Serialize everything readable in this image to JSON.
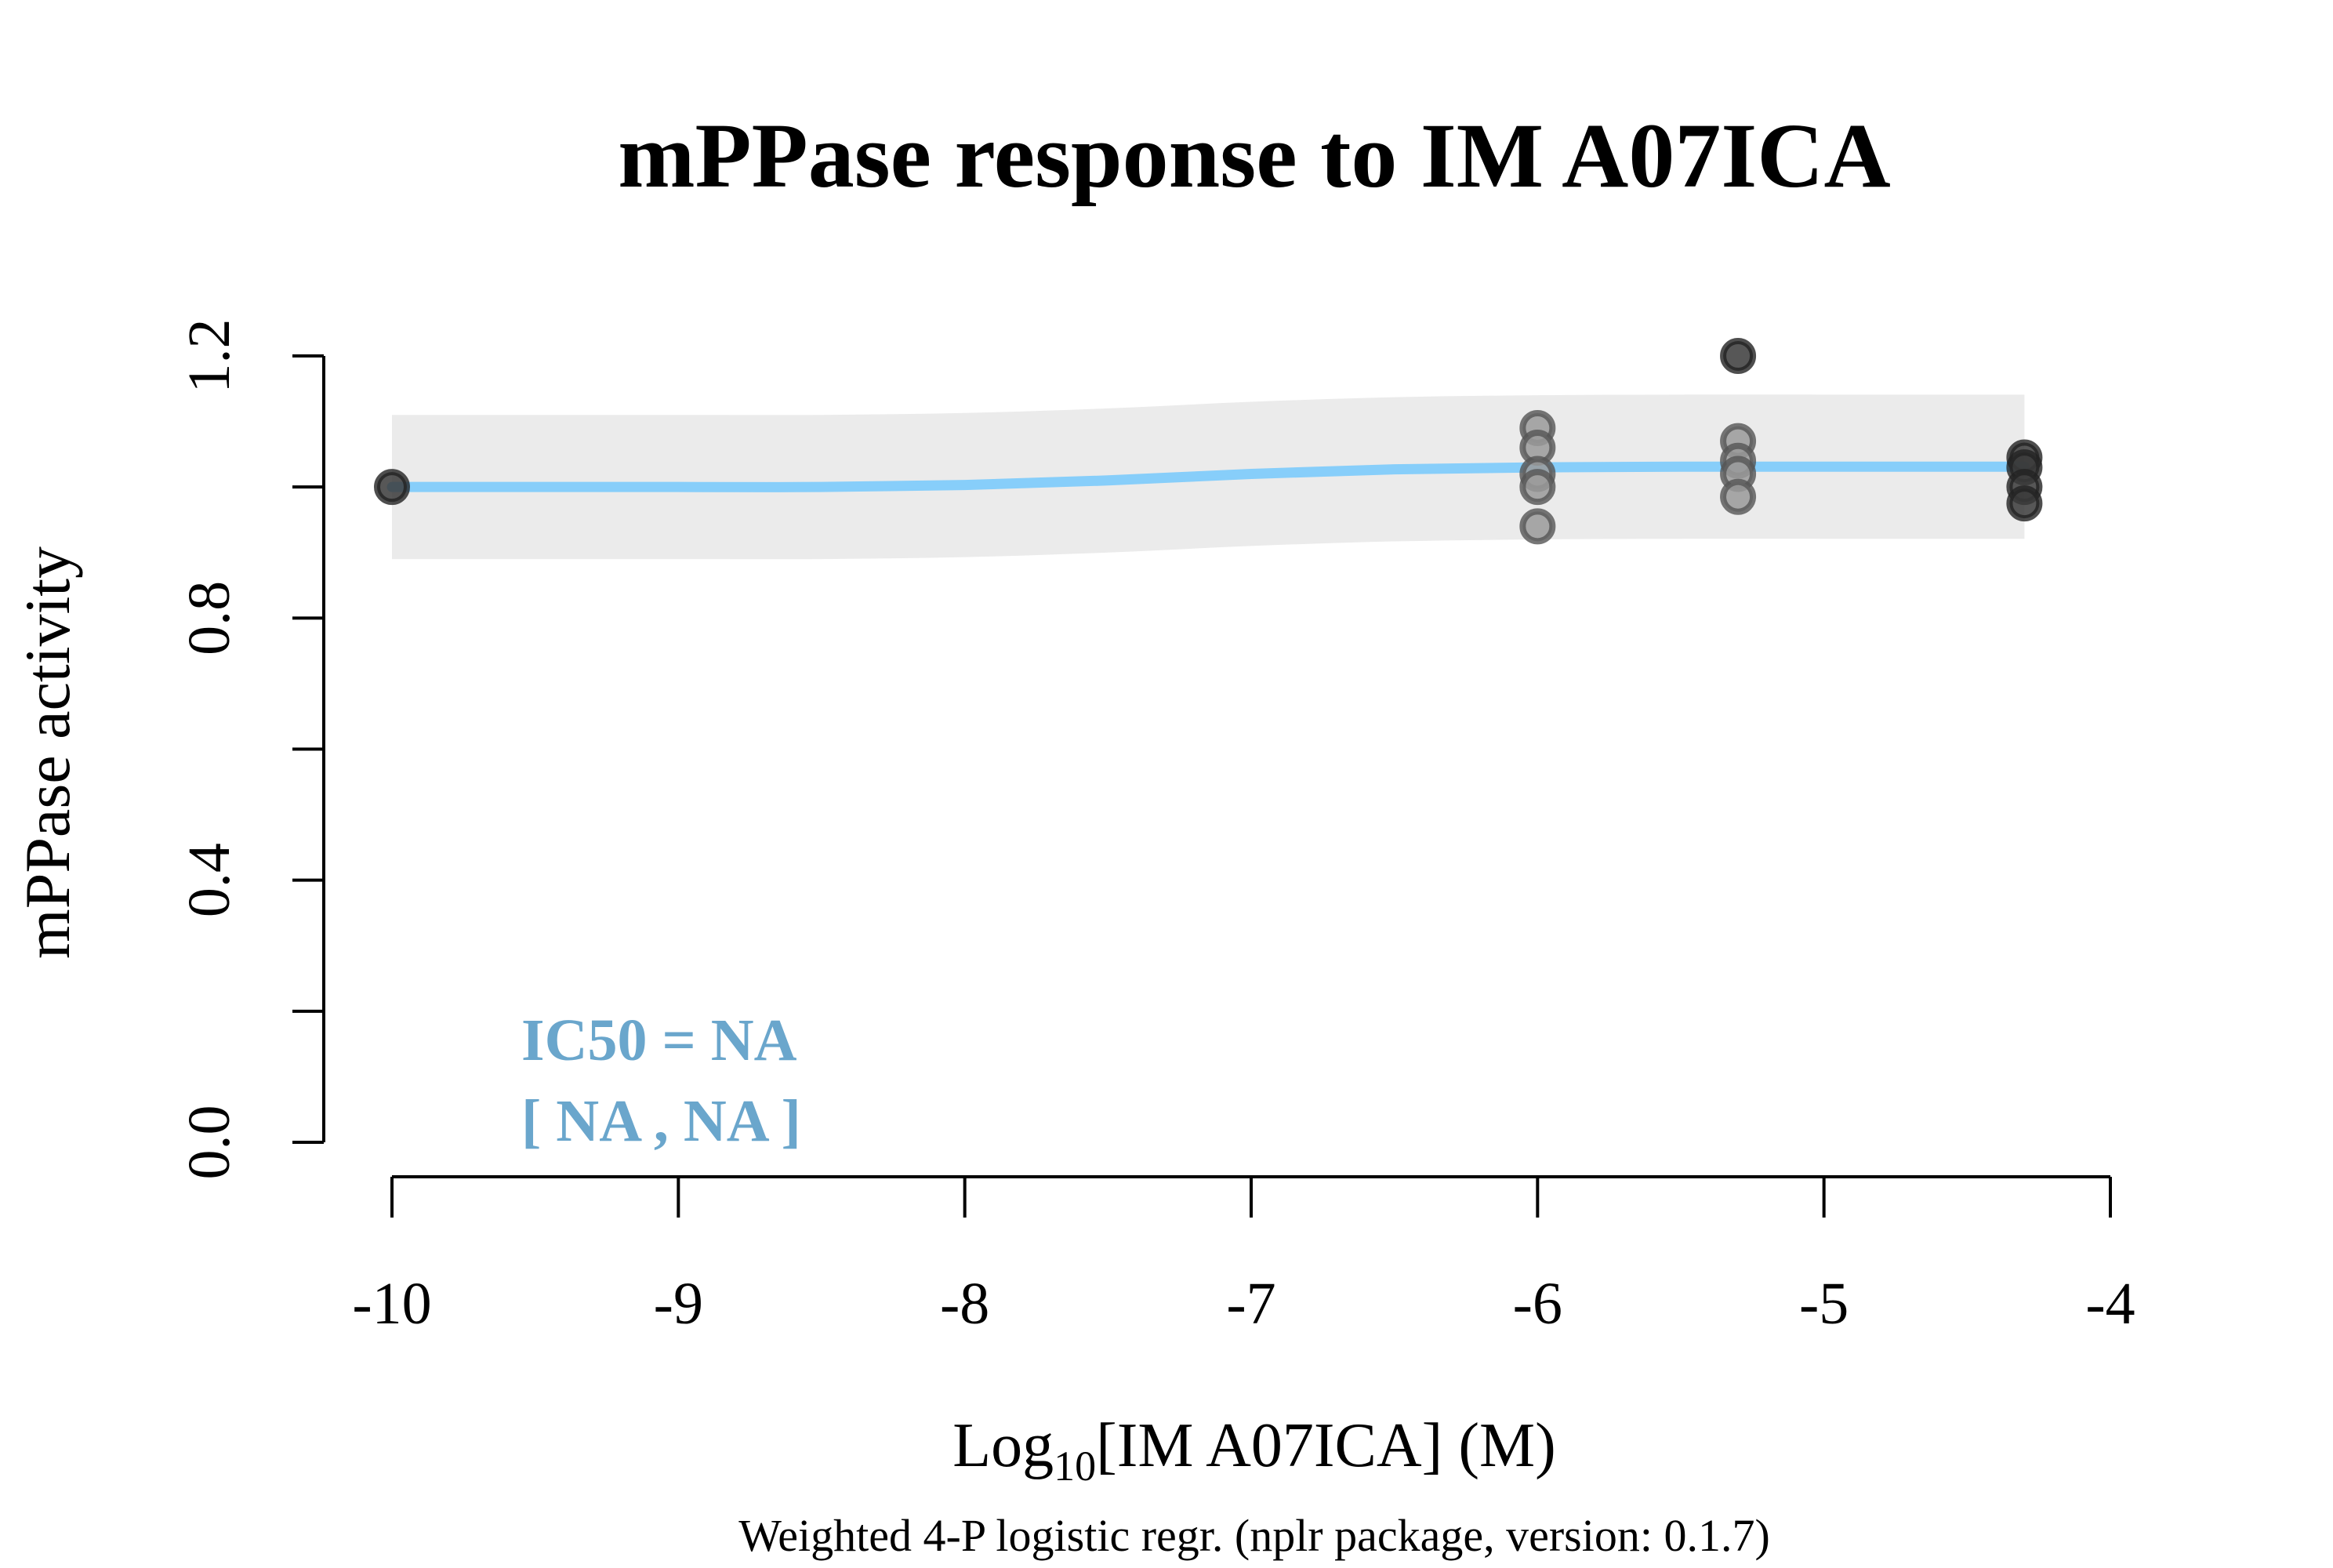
{
  "chart_data": {
    "type": "scatter",
    "title": "mPPase response to IM A07ICA",
    "xlabel_main": "Log",
    "xlabel_sub": "10",
    "xlabel_rest": "[IM A07ICA] (M)",
    "ylabel": "mPPase activity",
    "footnote": "Weighted 4-P logistic regr. (nplr package, version: 0.1.7)",
    "xlim": [
      -10,
      -4
    ],
    "ylim": [
      0,
      1.2
    ],
    "x_ticks": [
      -10,
      -9,
      -8,
      -7,
      -6,
      -5,
      -4
    ],
    "x_tick_labels": [
      "-10",
      "-9",
      "-8",
      "-7",
      "-6",
      "-5",
      "-4"
    ],
    "y_ticks": [
      0,
      0.2,
      0.4,
      0.6,
      0.8,
      1.0,
      1.2
    ],
    "y_tick_labels": [
      "0.0",
      "",
      "0.4",
      "",
      "0.8",
      "",
      "1.2"
    ],
    "points": [
      {
        "x": -10,
        "y": 1.0,
        "style": "dark"
      },
      {
        "x": -6,
        "y": 1.09,
        "style": "grey"
      },
      {
        "x": -6,
        "y": 1.06,
        "style": "grey"
      },
      {
        "x": -6,
        "y": 1.02,
        "style": "grey"
      },
      {
        "x": -6,
        "y": 1.0,
        "style": "grey"
      },
      {
        "x": -6,
        "y": 0.94,
        "style": "grey"
      },
      {
        "x": -5.3,
        "y": 1.2,
        "style": "dark"
      },
      {
        "x": -5.3,
        "y": 1.07,
        "style": "grey"
      },
      {
        "x": -5.3,
        "y": 1.04,
        "style": "grey"
      },
      {
        "x": -5.3,
        "y": 1.02,
        "style": "grey"
      },
      {
        "x": -5.3,
        "y": 0.985,
        "style": "grey"
      },
      {
        "x": -4.3,
        "y": 1.045,
        "style": "dark"
      },
      {
        "x": -4.3,
        "y": 1.03,
        "style": "dark"
      },
      {
        "x": -4.3,
        "y": 1.0,
        "style": "dark"
      },
      {
        "x": -4.3,
        "y": 0.975,
        "style": "dark"
      }
    ],
    "fit_curve": {
      "x": [
        -10,
        -9,
        -8.5,
        -8,
        -7.5,
        -7,
        -6.5,
        -6,
        -5.5,
        -5,
        -4.5,
        -4.3
      ],
      "y": [
        1.0,
        1.0,
        1.0,
        1.003,
        1.01,
        1.02,
        1.027,
        1.03,
        1.031,
        1.031,
        1.031,
        1.031
      ]
    },
    "confidence_band": {
      "x": [
        -10,
        -9,
        -8.5,
        -8,
        -7.5,
        -7,
        -6.5,
        -6,
        -5.5,
        -5,
        -4.5,
        -4.3
      ],
      "upper": [
        1.11,
        1.11,
        1.11,
        1.113,
        1.12,
        1.13,
        1.137,
        1.14,
        1.141,
        1.141,
        1.141,
        1.141
      ],
      "lower": [
        0.89,
        0.89,
        0.89,
        0.893,
        0.9,
        0.91,
        0.917,
        0.92,
        0.921,
        0.921,
        0.921,
        0.921
      ]
    },
    "annotation": {
      "line1": "IC50 = NA",
      "line2": "[ NA , NA ]",
      "color": "#6aa6cc"
    },
    "colors": {
      "curve": "#87cefa",
      "band": "#ebebeb",
      "point_dark_fill": "#3a3a3a",
      "point_grey_fill": "#9a9a9a",
      "point_stroke": "#555555",
      "axis": "#000000"
    }
  }
}
